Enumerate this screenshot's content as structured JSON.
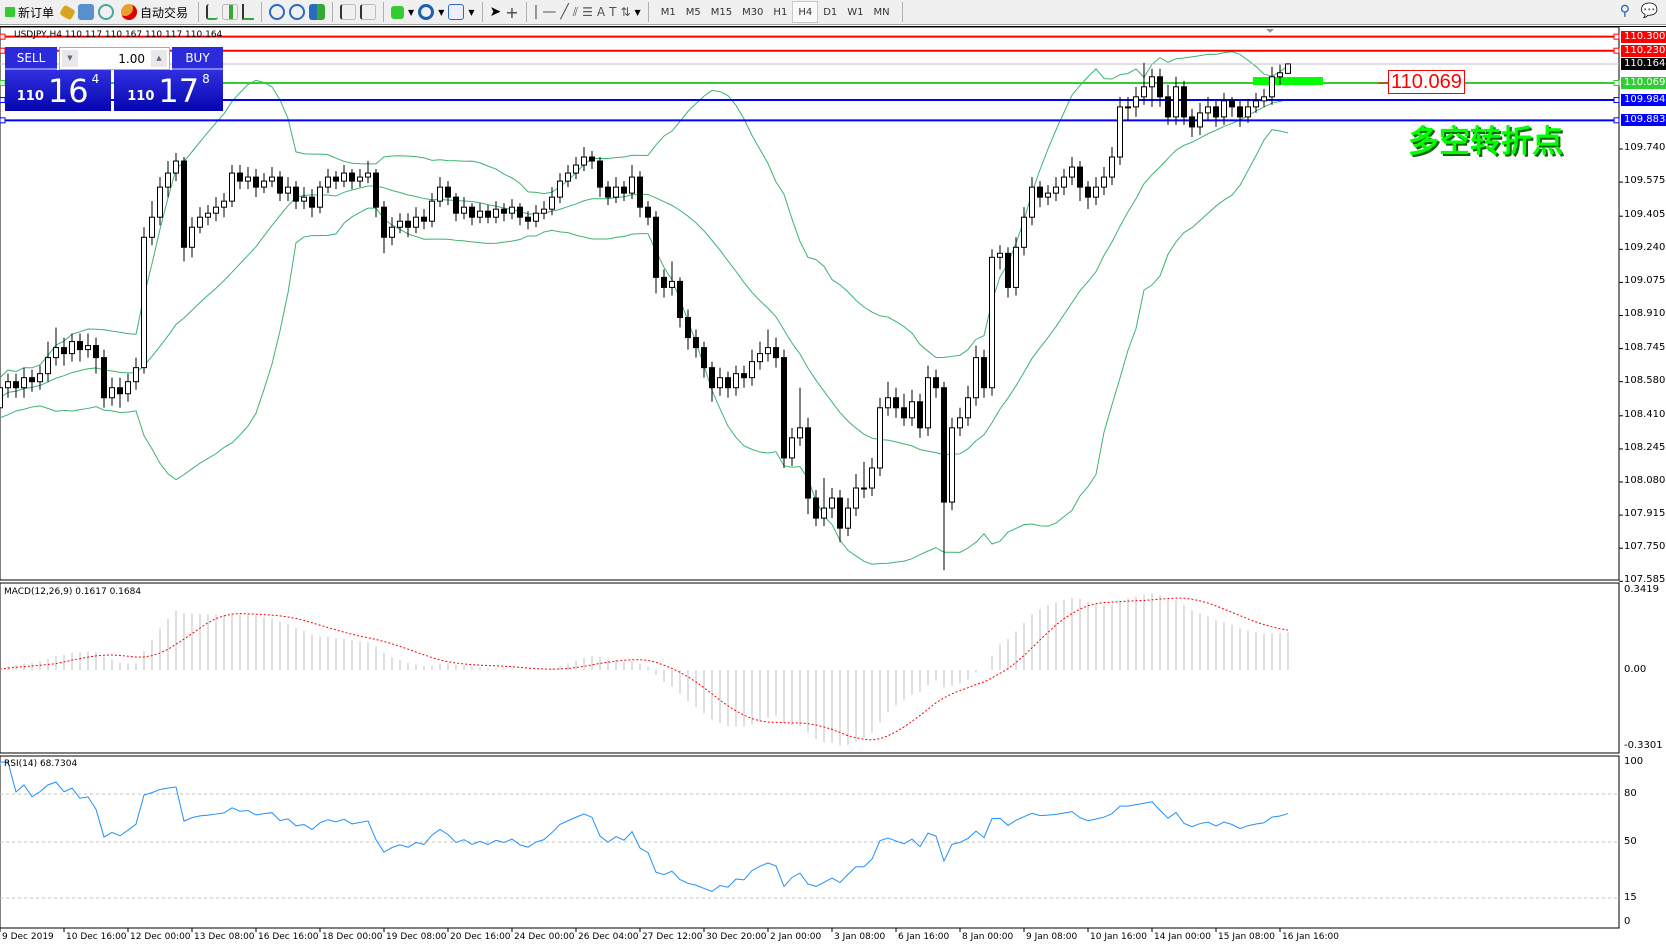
{
  "toolbar": {
    "new_order": "新订单",
    "auto_trading": "自动交易",
    "timeframes": [
      "M1",
      "M5",
      "M15",
      "M30",
      "H1",
      "H4",
      "D1",
      "W1",
      "MN"
    ],
    "active_timeframe": "H4"
  },
  "header": {
    "symbol_line": "USDJPY,H4  110.117 110.167 110.117 110.164"
  },
  "trade_panel": {
    "sell_label": "SELL",
    "buy_label": "BUY",
    "lot": "1.00",
    "sell_price": {
      "big": "110",
      "main": "16",
      "pip": "4"
    },
    "buy_price": {
      "big": "110",
      "main": "17",
      "pip": "8"
    }
  },
  "annotation": {
    "price_box": "110.069",
    "text": "多空转折点",
    "text_color": "#00ff00"
  },
  "chart_data": [
    {
      "type": "candlestick",
      "symbol": "USDJPY",
      "timeframe": "H4",
      "ylim": [
        107.585,
        110.33
      ],
      "price_ticks": [
        "109.740",
        "109.575",
        "109.405",
        "109.240",
        "109.075",
        "108.910",
        "108.745",
        "108.580",
        "108.410",
        "108.245",
        "108.080",
        "107.915",
        "107.750",
        "107.585"
      ],
      "date_labels": [
        "9 Dec 2019",
        "10 Dec 16:00",
        "12 Dec 00:00",
        "13 Dec 08:00",
        "16 Dec 16:00",
        "18 Dec 00:00",
        "19 Dec 08:00",
        "20 Dec 16:00",
        "24 Dec 00:00",
        "26 Dec 04:00",
        "27 Dec 12:00",
        "30 Dec 20:00",
        "2 Jan 00:00",
        "3 Jan 08:00",
        "6 Jan 16:00",
        "8 Jan 00:00",
        "9 Jan 08:00",
        "10 Jan 16:00",
        "14 Jan 00:00",
        "15 Jan 08:00",
        "16 Jan 16:00"
      ],
      "levels": [
        {
          "price": "110.300",
          "color": "#ff0000"
        },
        {
          "price": "110.230",
          "color": "#ff0000"
        },
        {
          "price": "110.164",
          "color": "#000000",
          "current": true
        },
        {
          "price": "110.069",
          "color": "#32cd32"
        },
        {
          "price": "109.984",
          "color": "#0000ff"
        },
        {
          "price": "109.883",
          "color": "#0000ff"
        }
      ],
      "overlay": "bollinger-bands",
      "candles": [
        [
          108.4,
          108.52,
          108.38,
          108.45
        ],
        [
          108.45,
          108.6,
          108.41,
          108.55
        ],
        [
          108.55,
          108.62,
          108.5,
          108.58
        ],
        [
          108.58,
          108.62,
          108.5,
          108.55
        ],
        [
          108.55,
          108.65,
          108.5,
          108.6
        ],
        [
          108.6,
          108.64,
          108.53,
          108.58
        ],
        [
          108.58,
          108.66,
          108.54,
          108.62
        ],
        [
          108.62,
          108.78,
          108.58,
          108.7
        ],
        [
          108.7,
          108.85,
          108.66,
          108.75
        ],
        [
          108.75,
          108.8,
          108.66,
          108.72
        ],
        [
          108.72,
          108.82,
          108.68,
          108.78
        ],
        [
          108.78,
          108.82,
          108.68,
          108.74
        ],
        [
          108.74,
          108.82,
          108.7,
          108.76
        ],
        [
          108.76,
          108.8,
          108.62,
          108.7
        ],
        [
          108.7,
          108.74,
          108.45,
          108.5
        ],
        [
          108.5,
          108.6,
          108.46,
          108.55
        ],
        [
          108.55,
          108.6,
          108.45,
          108.52
        ],
        [
          108.52,
          108.62,
          108.48,
          108.58
        ],
        [
          108.58,
          108.7,
          108.54,
          108.65
        ],
        [
          108.65,
          109.35,
          108.62,
          109.3
        ],
        [
          109.3,
          109.48,
          109.26,
          109.4
        ],
        [
          109.4,
          109.6,
          109.36,
          109.55
        ],
        [
          109.55,
          109.68,
          109.5,
          109.62
        ],
        [
          109.62,
          109.72,
          109.58,
          109.68
        ],
        [
          109.68,
          109.7,
          109.18,
          109.25
        ],
        [
          109.25,
          109.4,
          109.2,
          109.35
        ],
        [
          109.35,
          109.45,
          109.32,
          109.4
        ],
        [
          109.4,
          109.46,
          109.36,
          109.42
        ],
        [
          109.42,
          109.5,
          109.38,
          109.45
        ],
        [
          109.45,
          109.52,
          109.4,
          109.48
        ],
        [
          109.48,
          109.66,
          109.45,
          109.62
        ],
        [
          109.62,
          109.66,
          109.54,
          109.58
        ],
        [
          109.58,
          109.65,
          109.54,
          109.6
        ],
        [
          109.6,
          109.64,
          109.5,
          109.55
        ],
        [
          109.55,
          109.62,
          109.52,
          109.58
        ],
        [
          109.58,
          109.65,
          109.55,
          109.6
        ],
        [
          109.6,
          109.63,
          109.48,
          109.52
        ],
        [
          109.52,
          109.6,
          109.48,
          109.55
        ],
        [
          109.55,
          109.58,
          109.44,
          109.48
        ],
        [
          109.48,
          109.55,
          109.44,
          109.5
        ],
        [
          109.5,
          109.54,
          109.4,
          109.45
        ],
        [
          109.45,
          109.58,
          109.42,
          109.55
        ],
        [
          109.55,
          109.64,
          109.52,
          109.6
        ],
        [
          109.6,
          109.63,
          109.54,
          109.58
        ],
        [
          109.58,
          109.66,
          109.55,
          109.62
        ],
        [
          109.62,
          109.64,
          109.54,
          109.58
        ],
        [
          109.58,
          109.64,
          109.55,
          109.6
        ],
        [
          109.6,
          109.68,
          109.57,
          109.62
        ],
        [
          109.62,
          109.64,
          109.4,
          109.45
        ],
        [
          109.45,
          109.48,
          109.22,
          109.3
        ],
        [
          109.3,
          109.4,
          109.26,
          109.35
        ],
        [
          109.35,
          109.42,
          109.32,
          109.38
        ],
        [
          109.38,
          109.42,
          109.3,
          109.35
        ],
        [
          109.35,
          109.45,
          109.32,
          109.4
        ],
        [
          109.4,
          109.44,
          109.34,
          109.38
        ],
        [
          109.38,
          109.52,
          109.35,
          109.48
        ],
        [
          109.48,
          109.6,
          109.45,
          109.55
        ],
        [
          109.55,
          109.58,
          109.46,
          109.5
        ],
        [
          109.5,
          109.52,
          109.38,
          109.42
        ],
        [
          109.42,
          109.5,
          109.39,
          109.45
        ],
        [
          109.45,
          109.47,
          109.36,
          109.4
        ],
        [
          109.4,
          109.47,
          109.37,
          109.43
        ],
        [
          109.43,
          109.46,
          109.37,
          109.4
        ],
        [
          109.4,
          109.48,
          109.37,
          109.44
        ],
        [
          109.44,
          109.47,
          109.38,
          109.42
        ],
        [
          109.42,
          109.49,
          109.39,
          109.45
        ],
        [
          109.45,
          109.47,
          109.36,
          109.4
        ],
        [
          109.4,
          109.43,
          109.34,
          109.38
        ],
        [
          109.38,
          109.46,
          109.35,
          109.42
        ],
        [
          109.42,
          109.48,
          109.39,
          109.44
        ],
        [
          109.44,
          109.55,
          109.41,
          109.5
        ],
        [
          109.5,
          109.62,
          109.47,
          109.58
        ],
        [
          109.58,
          109.66,
          109.55,
          109.62
        ],
        [
          109.62,
          109.7,
          109.59,
          109.66
        ],
        [
          109.66,
          109.75,
          109.63,
          109.7
        ],
        [
          109.7,
          109.73,
          109.64,
          109.68
        ],
        [
          109.68,
          109.7,
          109.5,
          109.55
        ],
        [
          109.55,
          109.58,
          109.46,
          109.5
        ],
        [
          109.5,
          109.6,
          109.47,
          109.55
        ],
        [
          109.55,
          109.58,
          109.48,
          109.52
        ],
        [
          109.52,
          109.66,
          109.49,
          109.6
        ],
        [
          109.6,
          109.63,
          109.4,
          109.45
        ],
        [
          109.45,
          109.48,
          109.36,
          109.4
        ],
        [
          109.4,
          109.43,
          109.02,
          109.1
        ],
        [
          109.1,
          109.14,
          109.0,
          109.05
        ],
        [
          109.05,
          109.18,
          109.01,
          109.08
        ],
        [
          109.08,
          109.1,
          108.85,
          108.9
        ],
        [
          108.9,
          108.94,
          108.74,
          108.8
        ],
        [
          108.8,
          108.84,
          108.7,
          108.75
        ],
        [
          108.75,
          108.78,
          108.6,
          108.65
        ],
        [
          108.65,
          108.68,
          108.48,
          108.55
        ],
        [
          108.55,
          108.65,
          108.51,
          108.6
        ],
        [
          108.6,
          108.63,
          108.5,
          108.55
        ],
        [
          108.55,
          108.66,
          108.51,
          108.62
        ],
        [
          108.62,
          108.66,
          108.55,
          108.6
        ],
        [
          108.6,
          108.74,
          108.56,
          108.68
        ],
        [
          108.68,
          108.78,
          108.64,
          108.72
        ],
        [
          108.72,
          108.84,
          108.68,
          108.75
        ],
        [
          108.75,
          108.8,
          108.65,
          108.7
        ],
        [
          108.7,
          108.74,
          108.15,
          108.2
        ],
        [
          108.2,
          108.35,
          108.16,
          108.3
        ],
        [
          108.3,
          108.55,
          108.26,
          108.35
        ],
        [
          108.35,
          108.4,
          107.92,
          108.0
        ],
        [
          108.0,
          108.04,
          107.86,
          107.9
        ],
        [
          107.9,
          108.1,
          107.86,
          107.95
        ],
        [
          107.95,
          108.05,
          107.9,
          108.0
        ],
        [
          108.0,
          108.04,
          107.78,
          107.85
        ],
        [
          107.85,
          108.0,
          107.81,
          107.95
        ],
        [
          107.95,
          108.12,
          107.91,
          108.05
        ],
        [
          108.05,
          108.18,
          108.0,
          108.05
        ],
        [
          108.05,
          108.2,
          108.01,
          108.15
        ],
        [
          108.15,
          108.5,
          108.11,
          108.45
        ],
        [
          108.45,
          108.58,
          108.41,
          108.5
        ],
        [
          108.5,
          108.55,
          108.4,
          108.45
        ],
        [
          108.45,
          108.52,
          108.36,
          108.4
        ],
        [
          108.4,
          108.54,
          108.36,
          108.48
        ],
        [
          108.48,
          108.52,
          108.3,
          108.35
        ],
        [
          108.35,
          108.66,
          108.31,
          108.6
        ],
        [
          108.6,
          108.64,
          108.5,
          108.55
        ],
        [
          108.55,
          108.58,
          107.64,
          107.98
        ],
        [
          107.98,
          108.4,
          107.94,
          108.35
        ],
        [
          108.35,
          108.45,
          108.31,
          108.4
        ],
        [
          108.4,
          108.56,
          108.36,
          108.5
        ],
        [
          108.5,
          108.76,
          108.46,
          108.7
        ],
        [
          108.7,
          108.74,
          108.5,
          108.55
        ],
        [
          108.55,
          109.24,
          108.51,
          109.2
        ],
        [
          109.2,
          109.26,
          109.14,
          109.22
        ],
        [
          109.22,
          109.25,
          109.0,
          109.05
        ],
        [
          109.05,
          109.3,
          109.01,
          109.25
        ],
        [
          109.25,
          109.45,
          109.21,
          109.4
        ],
        [
          109.4,
          109.6,
          109.36,
          109.55
        ],
        [
          109.55,
          109.58,
          109.45,
          109.5
        ],
        [
          109.5,
          109.56,
          109.46,
          109.52
        ],
        [
          109.52,
          109.6,
          109.48,
          109.55
        ],
        [
          109.55,
          109.64,
          109.51,
          109.6
        ],
        [
          109.6,
          109.7,
          109.56,
          109.65
        ],
        [
          109.65,
          109.68,
          109.48,
          109.55
        ],
        [
          109.55,
          109.58,
          109.44,
          109.5
        ],
        [
          109.5,
          109.6,
          109.46,
          109.55
        ],
        [
          109.55,
          109.65,
          109.51,
          109.6
        ],
        [
          109.6,
          109.75,
          109.56,
          109.7
        ],
        [
          109.7,
          110.0,
          109.66,
          109.95
        ],
        [
          109.95,
          110.0,
          109.88,
          109.95
        ],
        [
          109.95,
          110.05,
          109.9,
          110.0
        ],
        [
          110.0,
          110.17,
          109.96,
          110.05
        ],
        [
          110.05,
          110.14,
          109.95,
          110.1
        ],
        [
          110.1,
          110.14,
          109.95,
          110.0
        ],
        [
          110.0,
          110.06,
          109.86,
          109.9
        ],
        [
          109.9,
          110.1,
          109.86,
          110.05
        ],
        [
          110.05,
          110.08,
          109.86,
          109.9
        ],
        [
          109.9,
          109.94,
          109.8,
          109.85
        ],
        [
          109.85,
          109.97,
          109.81,
          109.92
        ],
        [
          109.92,
          110.0,
          109.88,
          109.95
        ],
        [
          109.95,
          109.98,
          109.85,
          109.9
        ],
        [
          109.9,
          110.02,
          109.86,
          109.98
        ],
        [
          109.98,
          110.0,
          109.9,
          109.95
        ],
        [
          109.95,
          109.98,
          109.85,
          109.9
        ],
        [
          109.9,
          109.99,
          109.87,
          109.95
        ],
        [
          109.95,
          110.02,
          109.92,
          109.98
        ],
        [
          109.98,
          110.04,
          109.95,
          110.0
        ],
        [
          110.0,
          110.15,
          109.96,
          110.1
        ],
        [
          110.1,
          110.16,
          110.06,
          110.12
        ],
        [
          110.117,
          110.167,
          110.117,
          110.164
        ]
      ]
    },
    {
      "type": "bar+line",
      "title": "MACD(12,26,9) 0.1617 0.1684",
      "ylim": [
        -0.3301,
        0.3419
      ],
      "ticks": [
        "0.3419",
        "0.00",
        "-0.3301"
      ],
      "histogram_color": "#c0c0c0",
      "signal_color": "#ff0000"
    },
    {
      "type": "line",
      "title": "RSI(14) 68.7304",
      "ylim": [
        0,
        100
      ],
      "ticks": [
        "100",
        "80",
        "50",
        "15",
        "0"
      ],
      "levels": [
        80,
        50,
        15
      ],
      "color": "#1e90ff"
    }
  ]
}
